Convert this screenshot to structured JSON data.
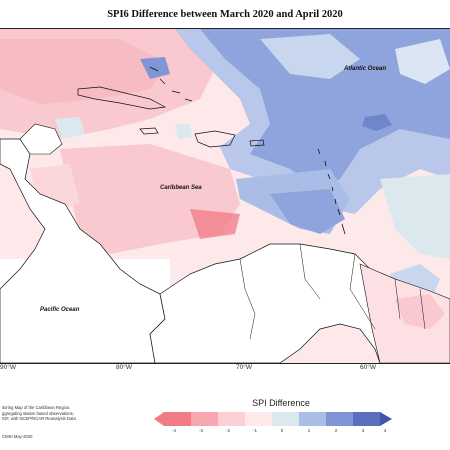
{
  "title": "SPI6 Difference between March 2020 and April 2020",
  "labels": {
    "atlantic": "Atlantic Ocean",
    "caribbean": "Caribbean Sea",
    "pacific": "Pacific Ocean"
  },
  "lon_ticks": [
    "90°W",
    "80°W",
    "70°W",
    "60°W"
  ],
  "credit_lines": [
    "itoring Map of the Caribbean Region.",
    "ggregating station based observations,",
    "IOF, with NCEP/NCAR Reanalysis Data"
  ],
  "copyright": "CIMH May-2020",
  "legend": {
    "title": "SPI Difference",
    "values": [
      "-4",
      "-3",
      "-2",
      "-1",
      "0",
      "1",
      "2",
      "3",
      "4"
    ],
    "colors": [
      "#f07a86",
      "#f6a7b0",
      "#fbcfd3",
      "#fde9ea",
      "#ffffff",
      "#dbe9ee",
      "#a9bde6",
      "#7f95d6",
      "#3f57a8"
    ]
  }
}
